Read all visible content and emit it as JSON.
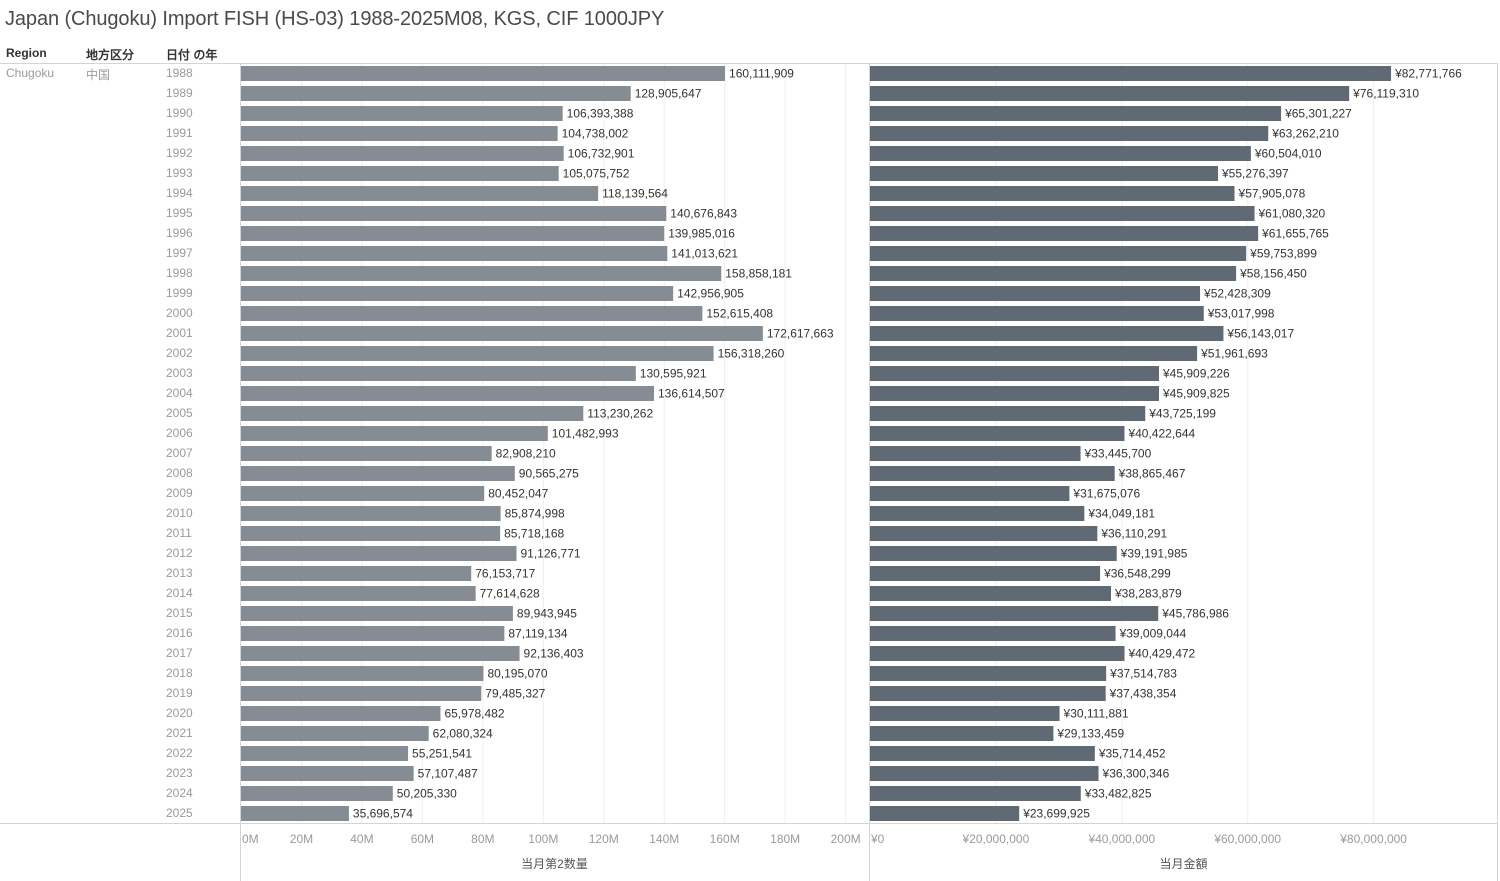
{
  "title": "Japan (Chugoku) Import FISH (HS-03) 1988-2025M08, KGS, CIF 1000JPY",
  "header": {
    "region_label": "Region",
    "district_label": "地方区分",
    "year_label": "日付 の年"
  },
  "rows": {
    "region": "Chugoku",
    "district": "中国"
  },
  "chart_data": {
    "type": "bar",
    "orientation": "horizontal",
    "title": "Japan (Chugoku) Import FISH (HS-03) 1988-2025M08, KGS, CIF 1000JPY",
    "grid": true,
    "legend": "none",
    "categories": [
      "1988",
      "1989",
      "1990",
      "1991",
      "1992",
      "1993",
      "1994",
      "1995",
      "1996",
      "1997",
      "1998",
      "1999",
      "2000",
      "2001",
      "2002",
      "2003",
      "2004",
      "2005",
      "2006",
      "2007",
      "2008",
      "2009",
      "2010",
      "2011",
      "2012",
      "2013",
      "2014",
      "2015",
      "2016",
      "2017",
      "2018",
      "2019",
      "2020",
      "2021",
      "2022",
      "2023",
      "2024",
      "2025"
    ],
    "series": [
      {
        "name": "当月第2数量",
        "axis_title": "当月第2数量",
        "color": "#858c93",
        "xlim": [
          0,
          207400000
        ],
        "ticks": [
          0,
          20000000,
          40000000,
          60000000,
          80000000,
          100000000,
          120000000,
          140000000,
          160000000,
          180000000,
          200000000
        ],
        "tick_labels": [
          "0M",
          "20M",
          "40M",
          "60M",
          "80M",
          "100M",
          "120M",
          "140M",
          "160M",
          "180M",
          "200M"
        ],
        "values": [
          160111909,
          128905647,
          106393388,
          104738002,
          106732901,
          105075752,
          118139564,
          140676843,
          139985016,
          141013621,
          158858181,
          142956905,
          152615408,
          172617663,
          156318260,
          130595921,
          136614507,
          113230262,
          101482993,
          82908210,
          90565275,
          80452047,
          85874998,
          85718168,
          91126771,
          76153717,
          77614628,
          89943945,
          87119134,
          92136403,
          80195070,
          79485327,
          65978482,
          62080324,
          55251541,
          57107487,
          50205330,
          35696574
        ],
        "labels": [
          "160,111,909",
          "128,905,647",
          "106,393,388",
          "104,738,002",
          "106,732,901",
          "105,075,752",
          "118,139,564",
          "140,676,843",
          "139,985,016",
          "141,013,621",
          "158,858,181",
          "142,956,905",
          "152,615,408",
          "172,617,663",
          "156,318,260",
          "130,595,921",
          "136,614,507",
          "113,230,262",
          "101,482,993",
          "82,908,210",
          "90,565,275",
          "80,452,047",
          "85,874,998",
          "85,718,168",
          "91,126,771",
          "76,153,717",
          "77,614,628",
          "89,943,945",
          "87,119,134",
          "92,136,403",
          "80,195,070",
          "79,485,327",
          "65,978,482",
          "62,080,324",
          "55,251,541",
          "57,107,487",
          "50,205,330",
          "35,696,574"
        ]
      },
      {
        "name": "当月金額",
        "axis_title": "当月金額",
        "color": "#5f6a74",
        "xlim": [
          0,
          99600000
        ],
        "ticks": [
          0,
          20000000,
          40000000,
          60000000,
          80000000
        ],
        "tick_labels": [
          "¥0",
          "¥20,000,000",
          "¥40,000,000",
          "¥60,000,000",
          "¥80,000,000"
        ],
        "values": [
          82771766,
          76119310,
          65301227,
          63262210,
          60504010,
          55276397,
          57905078,
          61080320,
          61655765,
          59753899,
          58156450,
          52428309,
          53017998,
          56143017,
          51961693,
          45909226,
          45909825,
          43725199,
          40422644,
          33445700,
          38865467,
          31675076,
          34049181,
          36110291,
          39191985,
          36548299,
          38283879,
          45786986,
          39009044,
          40429472,
          37514783,
          37438354,
          30111881,
          29133459,
          35714452,
          36300346,
          33482825,
          23699925
        ],
        "labels": [
          "¥82,771,766",
          "¥76,119,310",
          "¥65,301,227",
          "¥63,262,210",
          "¥60,504,010",
          "¥55,276,397",
          "¥57,905,078",
          "¥61,080,320",
          "¥61,655,765",
          "¥59,753,899",
          "¥58,156,450",
          "¥52,428,309",
          "¥53,017,998",
          "¥56,143,017",
          "¥51,961,693",
          "¥45,909,226",
          "¥45,909,825",
          "¥43,725,199",
          "¥40,422,644",
          "¥33,445,700",
          "¥38,865,467",
          "¥31,675,076",
          "¥34,049,181",
          "¥36,110,291",
          "¥39,191,985",
          "¥36,548,299",
          "¥38,283,879",
          "¥45,786,986",
          "¥39,009,044",
          "¥40,429,472",
          "¥37,514,783",
          "¥37,438,354",
          "¥30,111,881",
          "¥29,133,459",
          "¥35,714,452",
          "¥36,300,346",
          "¥33,482,825",
          "¥23,699,925"
        ]
      }
    ]
  }
}
